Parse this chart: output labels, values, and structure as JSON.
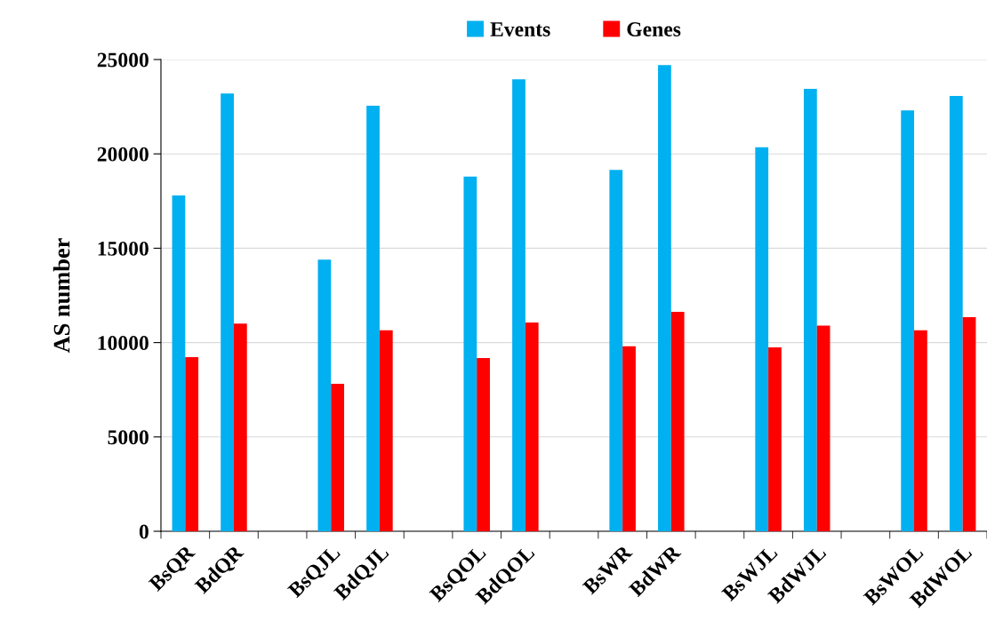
{
  "chart_data": {
    "type": "bar",
    "categories": [
      "BsQR",
      "BdQR",
      null,
      "BsQJL",
      "BdQJL",
      null,
      "BsQOL",
      "BdQOL",
      null,
      "BsWR",
      "BdWR",
      null,
      "BsWJL",
      "BdWJL",
      null,
      "BsWOL",
      "BdWOL"
    ],
    "series": [
      {
        "name": "Events",
        "color": "#00b0f0",
        "values": [
          17800,
          23200,
          null,
          14400,
          22550,
          null,
          18800,
          23950,
          null,
          19150,
          24700,
          null,
          20350,
          23450,
          null,
          22300,
          23070
        ]
      },
      {
        "name": "Genes",
        "color": "#ff0000",
        "values": [
          9230,
          11000,
          null,
          7820,
          10650,
          null,
          9180,
          11060,
          null,
          9800,
          11630,
          null,
          9750,
          10900,
          null,
          10650,
          11350
        ]
      }
    ],
    "ylabel": "AS number",
    "ylim": [
      0,
      25000
    ],
    "yticks": [
      0,
      5000,
      10000,
      15000,
      20000,
      25000
    ],
    "grid": "y",
    "legend": "top"
  }
}
